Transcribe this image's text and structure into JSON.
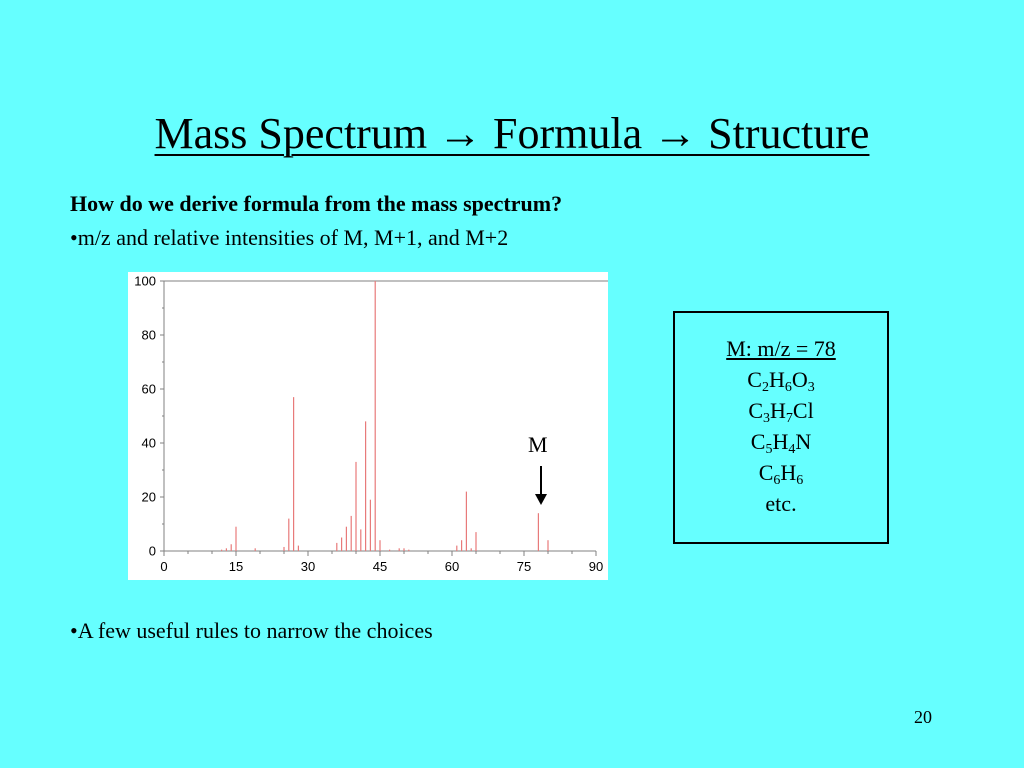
{
  "slide": {
    "title": "Mass Spectrum → Formula → Structure",
    "question": "How do we derive formula from the mass spectrum?",
    "bullet1": "•m/z and relative intensities of M, M+1, and M+2",
    "bullet2": "•A few useful rules to narrow the choices",
    "page_number": "20"
  },
  "annotation": {
    "label": "M"
  },
  "formula_box": {
    "heading": "M: m/z = 78",
    "formulas": [
      [
        {
          "t": "C"
        },
        {
          "s": "2"
        },
        {
          "t": "H"
        },
        {
          "s": "6"
        },
        {
          "t": "O"
        },
        {
          "s": "3"
        }
      ],
      [
        {
          "t": "C"
        },
        {
          "s": "3"
        },
        {
          "t": "H"
        },
        {
          "s": "7"
        },
        {
          "t": "Cl"
        }
      ],
      [
        {
          "t": "C"
        },
        {
          "s": "5"
        },
        {
          "t": "H"
        },
        {
          "s": "4"
        },
        {
          "t": "N"
        }
      ],
      [
        {
          "t": "C"
        },
        {
          "s": "6"
        },
        {
          "t": "H"
        },
        {
          "s": "6"
        }
      ]
    ],
    "footer": "etc."
  },
  "colors": {
    "background": "#66ffff",
    "peak": "#e87a7a",
    "plot_frame": "#808080"
  },
  "chart_data": {
    "type": "bar",
    "xlabel": "",
    "ylabel": "",
    "xlim": [
      0,
      90
    ],
    "ylim": [
      0,
      100
    ],
    "x_ticks": [
      0,
      15,
      30,
      45,
      60,
      75,
      90
    ],
    "y_ticks": [
      0,
      20,
      40,
      60,
      80,
      100
    ],
    "peaks": [
      {
        "x": 12,
        "y": 0.5
      },
      {
        "x": 13,
        "y": 1
      },
      {
        "x": 14,
        "y": 2.5
      },
      {
        "x": 15,
        "y": 9
      },
      {
        "x": 19,
        "y": 1
      },
      {
        "x": 25,
        "y": 1.5
      },
      {
        "x": 26,
        "y": 12
      },
      {
        "x": 27,
        "y": 57
      },
      {
        "x": 28,
        "y": 2
      },
      {
        "x": 36,
        "y": 3
      },
      {
        "x": 37,
        "y": 5
      },
      {
        "x": 38,
        "y": 9
      },
      {
        "x": 39,
        "y": 13
      },
      {
        "x": 40,
        "y": 33
      },
      {
        "x": 41,
        "y": 8
      },
      {
        "x": 42,
        "y": 48
      },
      {
        "x": 43,
        "y": 19
      },
      {
        "x": 44,
        "y": 100
      },
      {
        "x": 45,
        "y": 4
      },
      {
        "x": 47,
        "y": 0.5
      },
      {
        "x": 49,
        "y": 1
      },
      {
        "x": 50,
        "y": 1
      },
      {
        "x": 51,
        "y": 0.5
      },
      {
        "x": 61,
        "y": 2
      },
      {
        "x": 62,
        "y": 4
      },
      {
        "x": 63,
        "y": 22
      },
      {
        "x": 64,
        "y": 1
      },
      {
        "x": 65,
        "y": 7
      },
      {
        "x": 78,
        "y": 14
      },
      {
        "x": 80,
        "y": 4
      }
    ]
  }
}
